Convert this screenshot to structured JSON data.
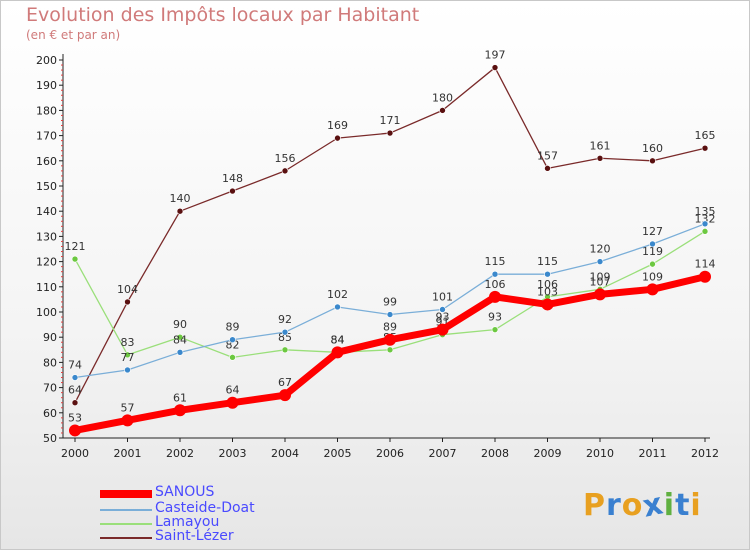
{
  "header": {
    "title": "Evolution des Impôts locaux par Habitant",
    "subtitle": "(en € et par an)"
  },
  "chart_data": {
    "type": "line",
    "title": "Evolution des Impôts locaux par Habitant",
    "subtitle": "(en € et par an)",
    "xlabel": "",
    "ylabel": "",
    "ylim": [
      50,
      200
    ],
    "yticks": [
      50,
      60,
      70,
      80,
      90,
      100,
      110,
      120,
      130,
      140,
      150,
      160,
      170,
      180,
      190,
      200
    ],
    "grid": false,
    "categories": [
      "2000",
      "2001",
      "2002",
      "2003",
      "2004",
      "2005",
      "2006",
      "2007",
      "2008",
      "2009",
      "2010",
      "2011",
      "2012"
    ],
    "series": [
      {
        "name": "Saint-Lézer",
        "color": "#7a2a2a",
        "marker": "#5a1010",
        "values": [
          64,
          104,
          140,
          148,
          156,
          169,
          171,
          180,
          197,
          157,
          161,
          160,
          165
        ]
      },
      {
        "name": "Lamayou",
        "color": "#9adf7a",
        "marker": "#6cc840",
        "values": [
          121,
          83,
          90,
          82,
          85,
          84,
          85,
          91,
          93,
          106,
          109,
          119,
          132
        ]
      },
      {
        "name": "Casteide-Doat",
        "color": "#7aaed8",
        "marker": "#3a88cc",
        "values": [
          74,
          77,
          84,
          89,
          92,
          102,
          99,
          101,
          115,
          115,
          120,
          127,
          135
        ]
      },
      {
        "name": "SANOUS",
        "color": "#ff0000",
        "marker": "#ff0000",
        "values": [
          53,
          57,
          61,
          64,
          67,
          84,
          89,
          93,
          106,
          103,
          107,
          109,
          114
        ]
      }
    ],
    "legend": [
      "SANOUS",
      "Casteide-Doat",
      "Lamayou",
      "Saint-Lézer"
    ],
    "legend_position": "bottom-left"
  },
  "legend": {
    "items": [
      {
        "label": "SANOUS",
        "color": "#ff0000"
      },
      {
        "label": "Casteide-Doat",
        "color": "#7aaed8"
      },
      {
        "label": "Lamayou",
        "color": "#9adf7a"
      },
      {
        "label": "Saint-Lézer",
        "color": "#7a2a2a"
      }
    ]
  },
  "logo": {
    "letters": [
      "P",
      "r",
      "o",
      "x",
      "i",
      "t",
      "i"
    ],
    "colors": [
      "#e8a020",
      "#3a80d0",
      "#e8a020",
      "#3a80d0",
      "#60b040",
      "#3a80d0",
      "#e8a020"
    ]
  }
}
